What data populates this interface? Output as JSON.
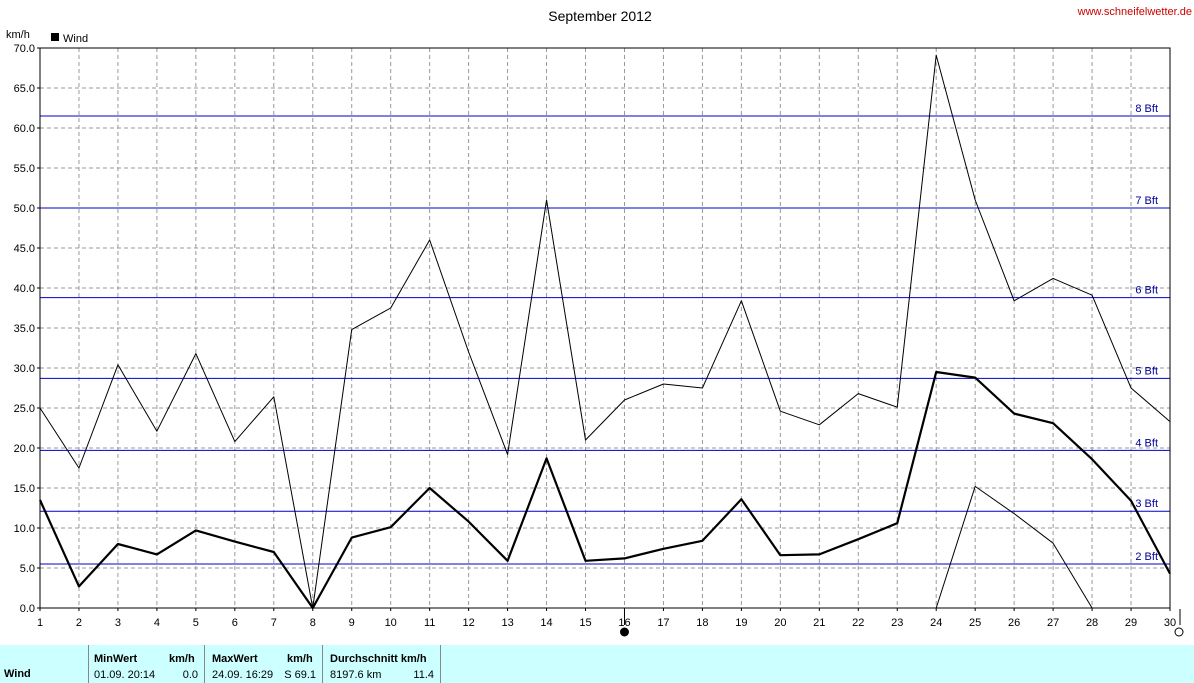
{
  "header": {
    "title": "September 2012",
    "source": "www.schneifelwetter.de",
    "unit": "km/h",
    "legend_label": "Wind"
  },
  "colors": {
    "series": "#000000",
    "beaufort_lines": "#0000cc",
    "beaufort_labels": "#000099",
    "source_link": "#cc0000",
    "grid": "#999999",
    "stats_bg": "#ccffff"
  },
  "chart_data": {
    "type": "line",
    "title": "September 2012",
    "ylabel": "km/h",
    "xlabel": "",
    "x": [
      1,
      2,
      3,
      4,
      5,
      6,
      7,
      8,
      9,
      10,
      11,
      12,
      13,
      14,
      15,
      16,
      17,
      18,
      19,
      20,
      21,
      22,
      23,
      24,
      25,
      26,
      27,
      28,
      29,
      30
    ],
    "xlim": [
      1,
      30
    ],
    "ylim": [
      0,
      70
    ],
    "yticks": [
      0,
      5,
      10,
      15,
      20,
      25,
      30,
      35,
      40,
      45,
      50,
      55,
      60,
      65,
      70
    ],
    "grid": true,
    "legend_placement": "top-left",
    "series": [
      {
        "name": "Wind",
        "role": "average",
        "style": "thick",
        "values": [
          13.5,
          2.7,
          8.0,
          6.7,
          9.7,
          8.3,
          7.0,
          0.0,
          8.8,
          10.1,
          15.0,
          10.8,
          5.9,
          18.7,
          5.9,
          6.2,
          7.4,
          8.4,
          13.6,
          6.6,
          6.7,
          8.6,
          10.6,
          29.5,
          28.8,
          24.3,
          23.1,
          18.6,
          13.4,
          4.3
        ]
      },
      {
        "role": "maximum",
        "style": "thin",
        "values": [
          25.0,
          17.5,
          30.4,
          22.1,
          31.8,
          20.8,
          26.4,
          0.0,
          34.8,
          37.5,
          46.0,
          32.0,
          19.2,
          51.0,
          21.0,
          26.0,
          28.0,
          27.5,
          38.4,
          24.6,
          22.9,
          26.8,
          25.1,
          69.1,
          51.0,
          38.4,
          41.2,
          39.1,
          27.5,
          23.3
        ]
      },
      {
        "role": "minimum",
        "style": "thin",
        "x": [
          24,
          25,
          26,
          27,
          28
        ],
        "values": [
          0.0,
          15.2,
          11.8,
          8.1,
          0.0
        ]
      }
    ],
    "reference_lines": [
      {
        "label": "2 Bft",
        "value": 5.5
      },
      {
        "label": "3 Bft",
        "value": 12.1
      },
      {
        "label": "4 Bft",
        "value": 19.7
      },
      {
        "label": "5 Bft",
        "value": 28.7
      },
      {
        "label": "6 Bft",
        "value": 38.8
      },
      {
        "label": "7 Bft",
        "value": 50.0
      },
      {
        "label": "8 Bft",
        "value": 61.5
      }
    ],
    "moon_phases": [
      {
        "day": 16,
        "phase": "new"
      },
      {
        "day": 30,
        "phase": "full"
      }
    ]
  },
  "stats": {
    "row_label": "Wind",
    "min": {
      "header": "MinWert",
      "unit": "km/h",
      "date": "01.09.  20:14",
      "value": "0.0"
    },
    "max": {
      "header": "MaxWert",
      "unit": "km/h",
      "date": "24.09.  16:29",
      "value": "S 69.1"
    },
    "avg": {
      "header": "Durchschnitt km/h",
      "distance": "8197.6 km",
      "value": "11.4"
    }
  }
}
